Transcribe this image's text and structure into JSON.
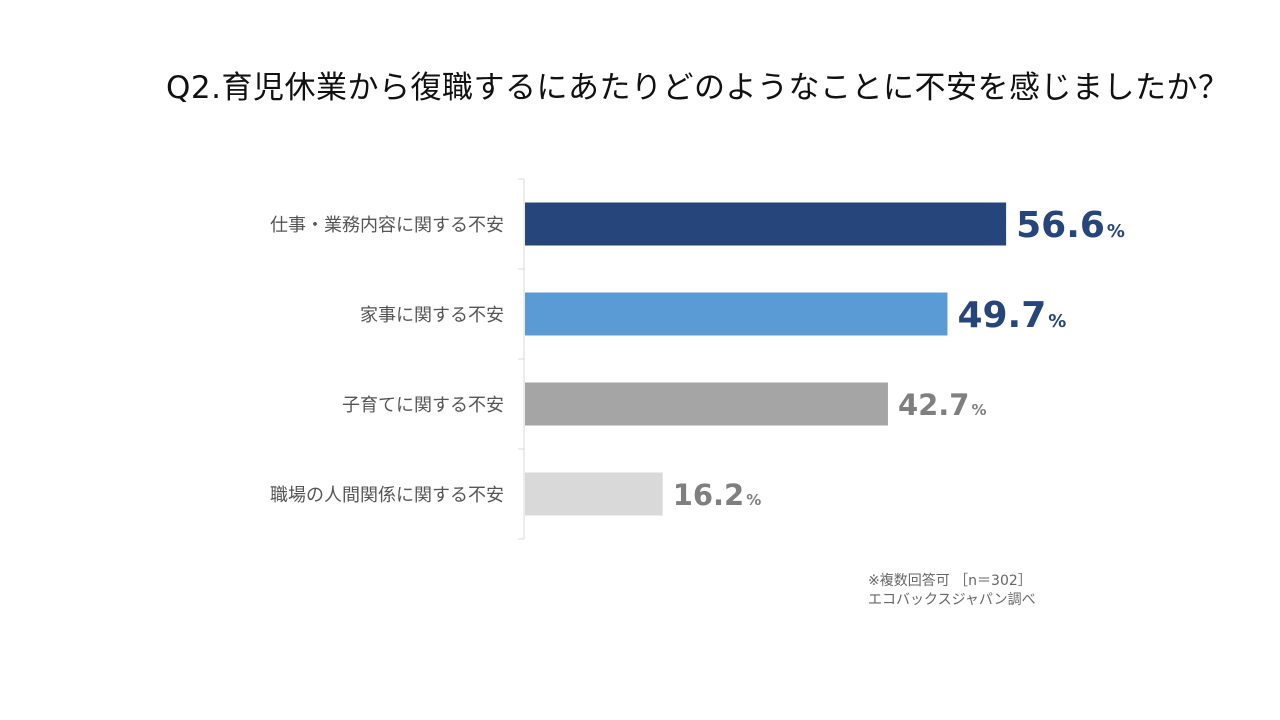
{
  "title": "Q2.育児休業から復職するにあたりどのようなことに不安を感じましたか？",
  "chart_data": {
    "type": "bar",
    "orientation": "horizontal",
    "categories": [
      "仕事・業務内容に関する不安",
      "家事に関する不安",
      "子育てに関する不安",
      "職場の人間関係に関する不安"
    ],
    "values": [
      56.6,
      49.7,
      42.7,
      16.2
    ],
    "value_labels": [
      "56.6",
      "49.7",
      "42.7",
      "16.2"
    ],
    "unit": "%",
    "bar_colors": [
      "#26457a",
      "#5b9bd5",
      "#a5a5a5",
      "#d9d9d9"
    ],
    "value_colors": [
      "#26457a",
      "#26457a",
      "#7f7f7f",
      "#7f7f7f"
    ],
    "xlim": [
      0,
      100
    ],
    "grid": false,
    "legend": "none"
  },
  "notes": {
    "line1": "※複数回答可 ［n＝302］",
    "line2": "エコバックスジャパン調べ"
  }
}
